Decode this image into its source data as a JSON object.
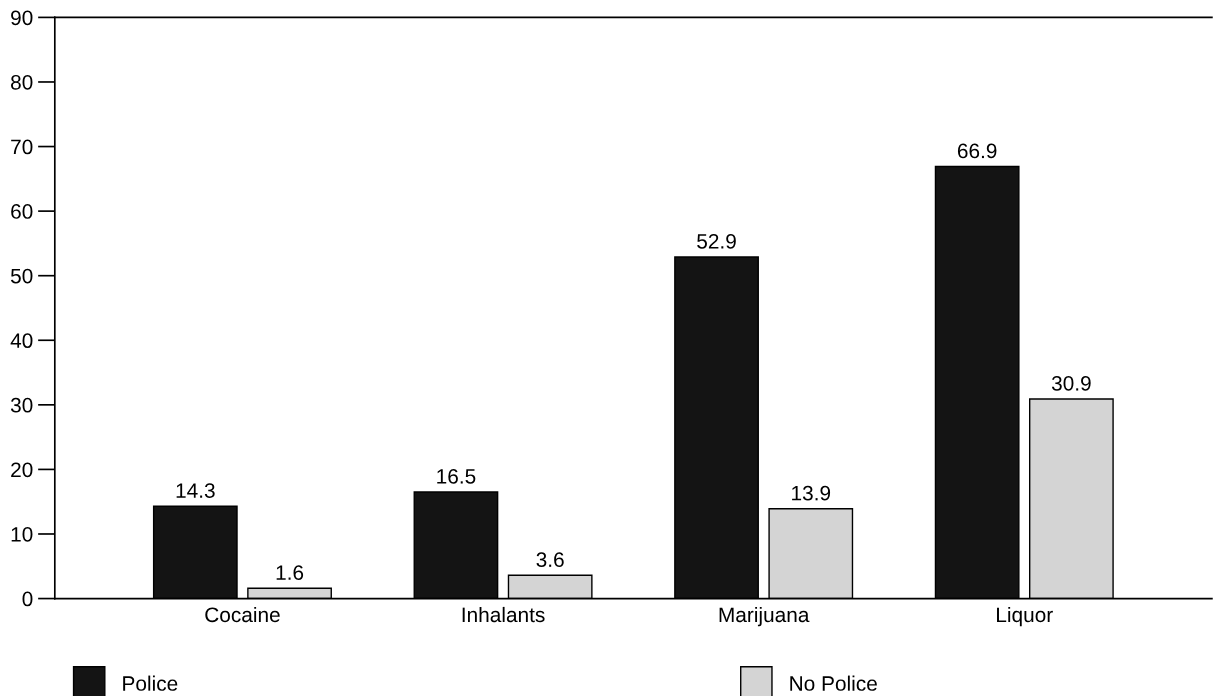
{
  "chart_data": {
    "type": "bar",
    "categories": [
      "Cocaine",
      "Inhalants",
      "Marijuana",
      "Liquor"
    ],
    "series": [
      {
        "name": "Police",
        "color": "#141414",
        "values": [
          14.3,
          16.5,
          52.9,
          66.9
        ]
      },
      {
        "name": "No Police",
        "color": "#d4d4d4",
        "values": [
          1.6,
          3.6,
          13.9,
          30.9
        ]
      }
    ],
    "ylim": [
      0,
      90
    ],
    "yticks": [
      0,
      10,
      20,
      30,
      40,
      50,
      60,
      70,
      80,
      90
    ],
    "data_labels": true,
    "grid": false,
    "legend": "bottom"
  }
}
